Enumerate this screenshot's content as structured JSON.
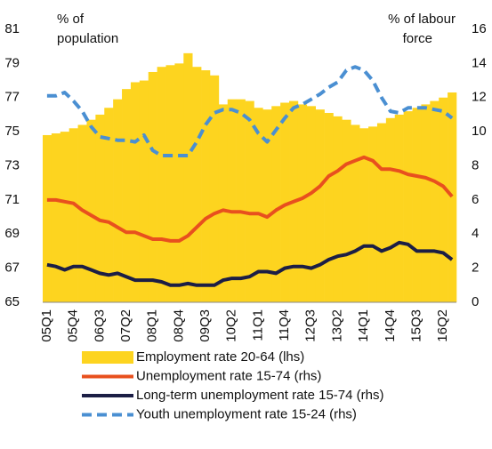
{
  "chart_data": {
    "type": "combo",
    "y_label": [
      "% of",
      "population"
    ],
    "y2_label": [
      "% of labour",
      "force"
    ],
    "categories": [
      "05Q1",
      null,
      null,
      "05Q4",
      null,
      null,
      "06Q3",
      null,
      null,
      "07Q2",
      null,
      null,
      "08Q1",
      null,
      null,
      "08Q4",
      null,
      null,
      "09Q3",
      null,
      null,
      "10Q2",
      null,
      null,
      "11Q1",
      null,
      null,
      "11Q4",
      null,
      null,
      "12Q3",
      null,
      null,
      "13Q2",
      null,
      null,
      "14Q1",
      null,
      null,
      "14Q4",
      null,
      null,
      "15Q3",
      null,
      null,
      "16Q2",
      null
    ],
    "series": [
      {
        "name": "Employment rate 20-64 (lhs)",
        "type": "bar",
        "axis": "y",
        "color": "#fdd41f",
        "values": [
          74.8,
          74.9,
          75.0,
          75.2,
          75.4,
          75.7,
          76.0,
          76.4,
          76.9,
          77.5,
          77.9,
          78.0,
          78.5,
          78.8,
          78.9,
          79.0,
          79.6,
          78.8,
          78.6,
          78.3,
          76.6,
          76.9,
          76.9,
          76.8,
          76.4,
          76.3,
          76.5,
          76.7,
          76.8,
          76.6,
          76.5,
          76.3,
          76.1,
          75.9,
          75.7,
          75.4,
          75.2,
          75.3,
          75.5,
          75.8,
          76.0,
          76.2,
          76.4,
          76.6,
          76.8,
          77.0,
          77.3
        ]
      },
      {
        "name": "Unemployment rate 15-74 (rhs)",
        "type": "line",
        "axis": "y2",
        "color": "#e8501e",
        "dashed": false,
        "values": [
          6.0,
          6.0,
          5.9,
          5.8,
          5.4,
          5.1,
          4.8,
          4.7,
          4.4,
          4.1,
          4.1,
          3.9,
          3.7,
          3.7,
          3.6,
          3.6,
          3.9,
          4.4,
          4.9,
          5.2,
          5.4,
          5.3,
          5.3,
          5.2,
          5.2,
          5.0,
          5.4,
          5.7,
          5.9,
          6.1,
          6.4,
          6.8,
          7.4,
          7.7,
          8.1,
          8.3,
          8.5,
          8.3,
          7.8,
          7.8,
          7.7,
          7.5,
          7.4,
          7.3,
          7.1,
          6.8,
          6.2
        ]
      },
      {
        "name": "Long-term unemployment rate 15-74 (rhs)",
        "type": "line",
        "axis": "y2",
        "color": "#1c1e45",
        "dashed": false,
        "values": [
          2.2,
          2.1,
          1.9,
          2.1,
          2.1,
          1.9,
          1.7,
          1.6,
          1.7,
          1.5,
          1.3,
          1.3,
          1.3,
          1.2,
          1.0,
          1.0,
          1.1,
          1.0,
          1.0,
          1.0,
          1.3,
          1.4,
          1.4,
          1.5,
          1.8,
          1.8,
          1.7,
          2.0,
          2.1,
          2.1,
          2.0,
          2.2,
          2.5,
          2.7,
          2.8,
          3.0,
          3.3,
          3.3,
          3.0,
          3.2,
          3.5,
          3.4,
          3.0,
          3.0,
          3.0,
          2.9,
          2.5
        ]
      },
      {
        "name": "Youth unemployment rate 15-24 (rhs)",
        "type": "line",
        "axis": "y2",
        "color": "#4a8fd2",
        "dashed": true,
        "values": [
          12.1,
          12.1,
          12.3,
          11.8,
          11.2,
          10.3,
          9.7,
          9.6,
          9.5,
          9.5,
          9.4,
          9.8,
          8.9,
          8.6,
          8.6,
          8.6,
          8.6,
          9.4,
          10.4,
          11.1,
          11.3,
          11.3,
          11.1,
          10.7,
          9.9,
          9.4,
          10.1,
          10.8,
          11.4,
          11.6,
          11.9,
          12.2,
          12.6,
          12.9,
          13.6,
          13.8,
          13.6,
          13.0,
          12.0,
          11.2,
          11.1,
          11.4,
          11.4,
          11.4,
          11.3,
          11.2,
          10.8
        ]
      }
    ],
    "ylim": [
      65,
      81
    ],
    "yticks": [
      65,
      67,
      69,
      71,
      73,
      75,
      77,
      79,
      81
    ],
    "y2lim": [
      0,
      16
    ],
    "y2ticks": [
      0,
      2,
      4,
      6,
      8,
      10,
      12,
      14,
      16
    ],
    "legend": "bottom"
  }
}
